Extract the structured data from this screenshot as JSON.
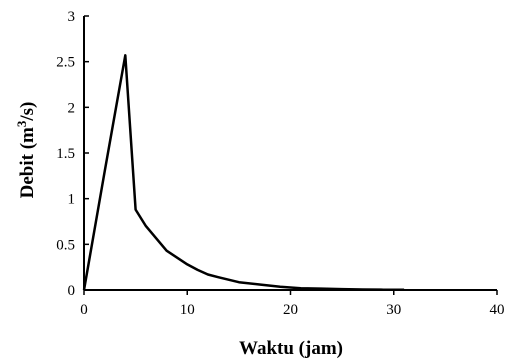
{
  "chart_data": {
    "type": "line",
    "title": "",
    "xlabel": "Waktu (jam)",
    "ylabel": {
      "main": "Debit  (m",
      "sup": "3",
      "tail": "/s)"
    },
    "xlim": [
      0,
      40
    ],
    "ylim": [
      0,
      3
    ],
    "xticks": [
      0,
      10,
      20,
      30,
      40
    ],
    "yticks": [
      0,
      0.5,
      1,
      1.5,
      2,
      2.5,
      3
    ],
    "xtick_labels": [
      "0",
      "10",
      "20",
      "30",
      "40"
    ],
    "ytick_labels": [
      "0",
      "0.5",
      "1",
      "1.5",
      "2",
      "2.5",
      "3"
    ],
    "grid": false,
    "line_color": "#000000",
    "series": [
      {
        "x": [
          0,
          2,
          4,
          5,
          6,
          8,
          10,
          11,
          12,
          13,
          15,
          17,
          19,
          21,
          23,
          25,
          27,
          29,
          31
        ],
        "y": [
          0,
          1.3,
          2.57,
          0.88,
          0.7,
          0.43,
          0.28,
          0.22,
          0.17,
          0.14,
          0.085,
          0.06,
          0.035,
          0.02,
          0.015,
          0.01,
          0.005,
          0.003,
          0.002
        ]
      }
    ]
  }
}
